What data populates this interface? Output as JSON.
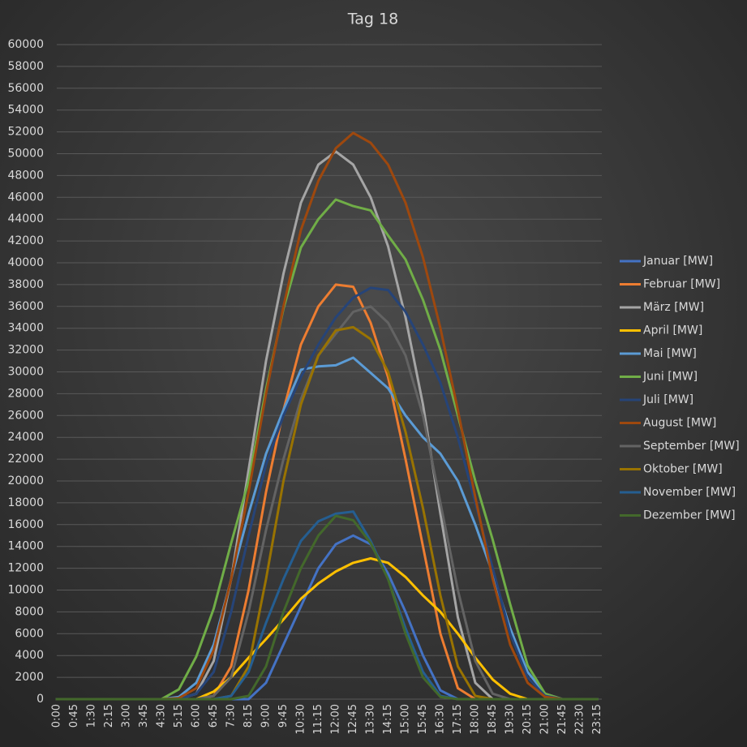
{
  "chart_data": {
    "type": "line",
    "title": "Tag 18",
    "categories": [
      "0:00",
      "0:45",
      "1:30",
      "2:15",
      "3:00",
      "3:45",
      "4:30",
      "5:15",
      "6:00",
      "6:45",
      "7:30",
      "8:15",
      "9:00",
      "9:45",
      "10:30",
      "11:15",
      "12:00",
      "12:45",
      "13:30",
      "14:15",
      "15:00",
      "15:45",
      "16:30",
      "17:15",
      "18:00",
      "18:45",
      "19:30",
      "20:15",
      "21:00",
      "21:45",
      "22:30",
      "23:15"
    ],
    "ylim": [
      0,
      60000
    ],
    "yticks": [
      0,
      2000,
      4000,
      6000,
      8000,
      10000,
      12000,
      14000,
      16000,
      18000,
      20000,
      22000,
      24000,
      26000,
      28000,
      30000,
      32000,
      34000,
      36000,
      38000,
      40000,
      42000,
      44000,
      46000,
      48000,
      50000,
      52000,
      54000,
      56000,
      58000,
      60000
    ],
    "grid": true,
    "legend": "right",
    "series": [
      {
        "name": "Januar [MW]",
        "color": "#4472c4",
        "values": [
          0,
          0,
          0,
          0,
          0,
          0,
          0,
          0,
          0,
          0,
          0,
          0,
          1500,
          5000,
          8500,
          12000,
          14200,
          15000,
          14200,
          11500,
          8000,
          4000,
          800,
          0,
          0,
          0,
          0,
          0,
          0,
          0,
          0,
          0
        ]
      },
      {
        "name": "Februar [MW]",
        "color": "#ed7d31",
        "values": [
          0,
          0,
          0,
          0,
          0,
          0,
          0,
          0,
          0,
          300,
          3000,
          10000,
          19000,
          26500,
          32500,
          36000,
          38000,
          37800,
          34500,
          29500,
          22000,
          14000,
          6000,
          1000,
          0,
          0,
          0,
          0,
          0,
          0,
          0,
          0
        ]
      },
      {
        "name": "März [MW]",
        "color": "#a5a5a5",
        "values": [
          0,
          0,
          0,
          0,
          0,
          0,
          0,
          0,
          500,
          3500,
          11000,
          21000,
          31000,
          39000,
          45500,
          49000,
          50200,
          49000,
          46000,
          41500,
          35000,
          27000,
          17000,
          7500,
          1500,
          0,
          0,
          0,
          0,
          0,
          0,
          0
        ]
      },
      {
        "name": "April [MW]",
        "color": "#ffc000",
        "values": [
          0,
          0,
          0,
          0,
          0,
          0,
          0,
          0,
          0,
          700,
          2000,
          3800,
          5500,
          7300,
          9200,
          10600,
          11700,
          12500,
          12900,
          12500,
          11200,
          9500,
          8000,
          6000,
          3800,
          1800,
          500,
          0,
          0,
          0,
          0,
          0
        ]
      },
      {
        "name": "Mai [MW]",
        "color": "#5b9bd5",
        "values": [
          0,
          0,
          0,
          0,
          0,
          0,
          0,
          200,
          1500,
          5000,
          11000,
          17000,
          22500,
          26500,
          30200,
          30500,
          30600,
          31300,
          29900,
          28500,
          26000,
          24000,
          22500,
          20000,
          16000,
          11500,
          6500,
          2500,
          500,
          0,
          0,
          0
        ]
      },
      {
        "name": "Juni [MW]",
        "color": "#70ad47",
        "values": [
          0,
          0,
          0,
          0,
          0,
          0,
          0,
          900,
          3900,
          8300,
          14300,
          20000,
          28400,
          35800,
          41400,
          44000,
          45800,
          45200,
          44800,
          42500,
          40300,
          36600,
          32000,
          26000,
          20000,
          14600,
          8700,
          3100,
          500,
          0,
          0,
          0
        ]
      },
      {
        "name": "Juli [MW]",
        "color": "#264478",
        "values": [
          0,
          0,
          0,
          0,
          0,
          0,
          0,
          0,
          500,
          2500,
          8000,
          15000,
          21500,
          26000,
          29500,
          32500,
          35000,
          36800,
          37700,
          37500,
          35500,
          32500,
          29000,
          24000,
          18000,
          12000,
          6000,
          2000,
          300,
          0,
          0,
          0
        ]
      },
      {
        "name": "August [MW]",
        "color": "#9e480e",
        "values": [
          0,
          0,
          0,
          0,
          0,
          0,
          0,
          100,
          1000,
          4500,
          11000,
          19000,
          28000,
          36000,
          43000,
          47500,
          50500,
          51900,
          51000,
          49000,
          45500,
          40500,
          34000,
          26500,
          18500,
          11000,
          5000,
          1500,
          200,
          0,
          0,
          0
        ]
      },
      {
        "name": "September [MW]",
        "color": "#636363",
        "values": [
          0,
          0,
          0,
          0,
          0,
          0,
          0,
          0,
          0,
          300,
          2000,
          8000,
          15500,
          22000,
          27500,
          31500,
          33500,
          35500,
          36000,
          34500,
          31500,
          26000,
          18000,
          10000,
          3500,
          500,
          0,
          0,
          0,
          0,
          0,
          0
        ]
      },
      {
        "name": "Oktober [MW]",
        "color": "#997300",
        "values": [
          0,
          0,
          0,
          0,
          0,
          0,
          0,
          0,
          0,
          0,
          300,
          3000,
          11000,
          20000,
          27000,
          31500,
          33800,
          34100,
          33000,
          30000,
          24500,
          17500,
          9500,
          3000,
          300,
          0,
          0,
          0,
          0,
          0,
          0,
          0
        ]
      },
      {
        "name": "November [MW]",
        "color": "#255e91",
        "values": [
          0,
          0,
          0,
          0,
          0,
          0,
          0,
          0,
          0,
          0,
          300,
          2500,
          7000,
          11000,
          14500,
          16300,
          17000,
          17200,
          14500,
          11000,
          6500,
          2500,
          300,
          0,
          0,
          0,
          0,
          0,
          0,
          0,
          0,
          0
        ]
      },
      {
        "name": "Dezember [MW]",
        "color": "#43682b",
        "values": [
          0,
          0,
          0,
          0,
          0,
          0,
          0,
          0,
          0,
          0,
          0,
          300,
          3000,
          8000,
          12000,
          15000,
          16800,
          16400,
          14300,
          11000,
          6000,
          2000,
          200,
          0,
          0,
          0,
          0,
          0,
          0,
          0,
          0,
          0
        ]
      }
    ]
  }
}
